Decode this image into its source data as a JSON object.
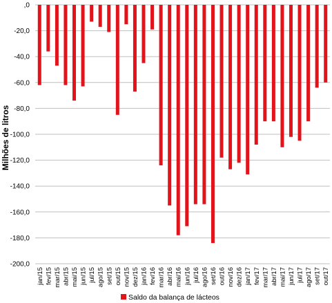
{
  "chart_data": {
    "type": "bar",
    "ylabel": "Milhões de litros",
    "ylim": [
      -200,
      0
    ],
    "yticks": [
      0,
      -20,
      -40,
      -60,
      -80,
      -100,
      -120,
      -140,
      -160,
      -180,
      -200
    ],
    "ytick_labels": [
      ",0",
      "-20,0",
      "-40,0",
      "-60,0",
      "-80,0",
      "-100,0",
      "-120,0",
      "-140,0",
      "-160,0",
      "-180,0",
      "-200,0"
    ],
    "grid": true,
    "legend_position": "bottom",
    "categories": [
      "jan/15",
      "fev/15",
      "mar/15",
      "abr/15",
      "mai/15",
      "jun/15",
      "jul/15",
      "ago/15",
      "set/15",
      "out/15",
      "nov/15",
      "dez/15",
      "jan/16",
      "fev/16",
      "mar/16",
      "abr/16",
      "mai/16",
      "jun/16",
      "jul/16",
      "ago/16",
      "set/16",
      "out/16",
      "nov/16",
      "dez/16",
      "jan/17",
      "fev/17",
      "mar/17",
      "abr/17",
      "mai/17",
      "jun/17",
      "jul/17",
      "ago/17",
      "set/17",
      "out/17"
    ],
    "series": [
      {
        "name": "Saldo da balança de lácteos",
        "color": "#e0141a",
        "values": [
          -62,
          -36,
          -47,
          -62,
          -74,
          -63,
          -13,
          -17,
          -21,
          -85,
          -15,
          -67,
          -45,
          -19,
          -124,
          -155,
          -178,
          -171,
          -154,
          -154,
          -184,
          -118,
          -127,
          -122,
          -131,
          -108,
          -90,
          -90,
          -110,
          -102,
          -105,
          -90,
          -64,
          -60
        ]
      }
    ]
  }
}
